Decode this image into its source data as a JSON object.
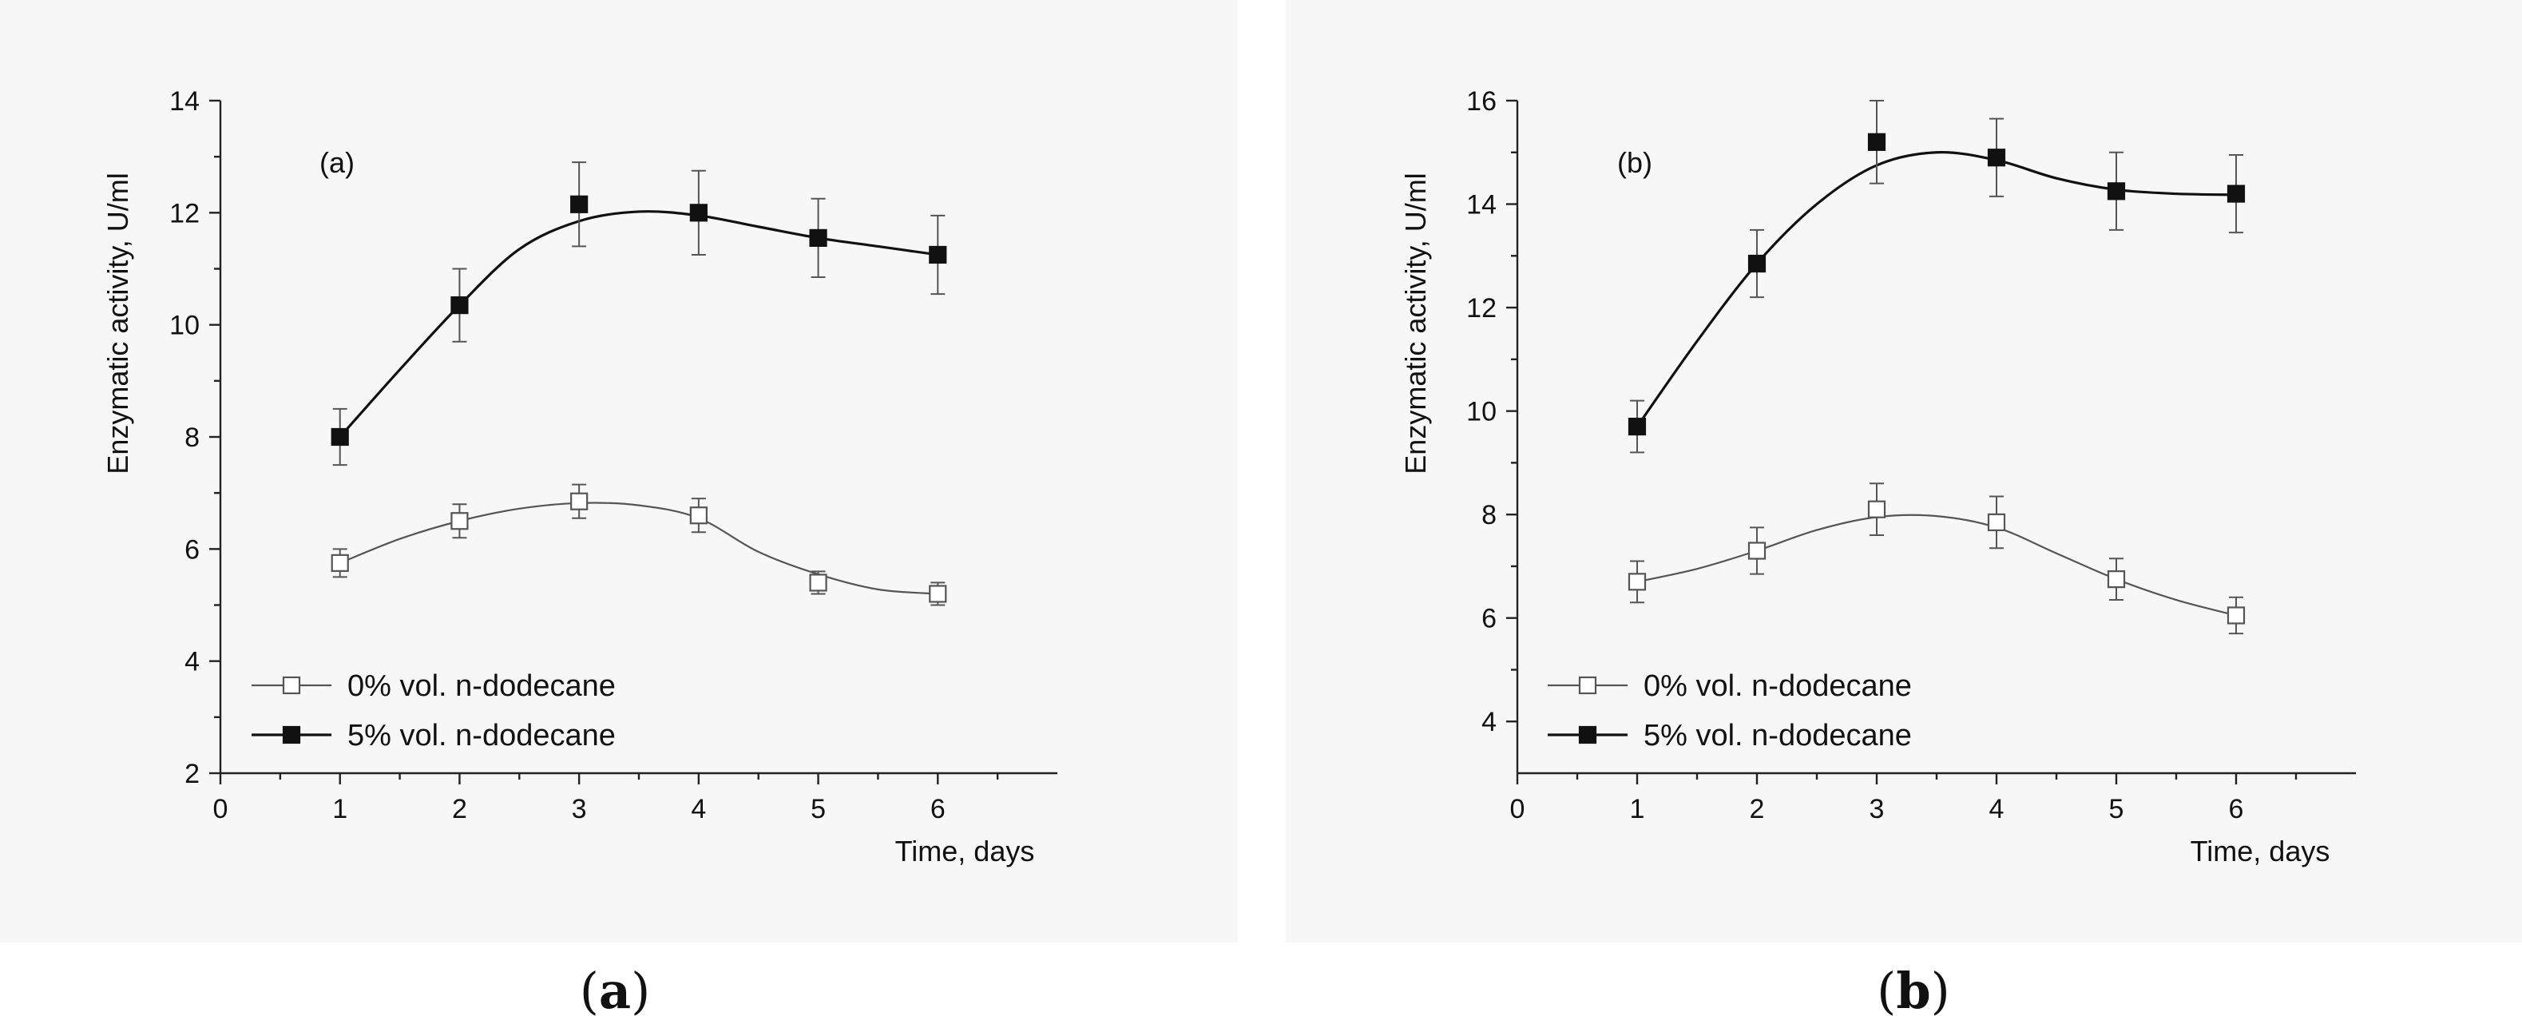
{
  "colors": {
    "series_open_line": "#555555",
    "series_filled_line": "#111111",
    "axis": "#222222",
    "panel_background": "#f7f7f7"
  },
  "chart_data": [
    {
      "type": "line",
      "panel_label": "(a)",
      "caption": {
        "open": "(",
        "letter": "a",
        "close": ")"
      },
      "xlabel": "Time, days",
      "ylabel": "Enzymatic activity, U/ml",
      "xlim": [
        0,
        7
      ],
      "ylim": [
        2,
        14
      ],
      "xticks": [
        "0",
        "1",
        "2",
        "3",
        "4",
        "5",
        "6"
      ],
      "yticks": [
        "2",
        "4",
        "6",
        "8",
        "10",
        "12",
        "14"
      ],
      "x": [
        1,
        2,
        3,
        4,
        5,
        6
      ],
      "legend_position": "bottom-left",
      "series": [
        {
          "name": "0% vol. n-dodecane",
          "marker": "open-square",
          "values": [
            5.75,
            6.5,
            6.85,
            6.6,
            5.4,
            5.2
          ],
          "errors": [
            0.25,
            0.3,
            0.3,
            0.3,
            0.2,
            0.2
          ],
          "curve": [
            [
              1,
              5.75
            ],
            [
              1.5,
              6.18
            ],
            [
              2,
              6.5
            ],
            [
              2.5,
              6.72
            ],
            [
              3,
              6.82
            ],
            [
              3.5,
              6.78
            ],
            [
              4,
              6.55
            ],
            [
              4.5,
              5.95
            ],
            [
              5,
              5.55
            ],
            [
              5.5,
              5.28
            ],
            [
              6,
              5.2
            ]
          ]
        },
        {
          "name": "5% vol. n-dodecane",
          "marker": "filled-square",
          "values": [
            8.0,
            10.35,
            12.15,
            12.0,
            11.55,
            11.25
          ],
          "errors": [
            0.5,
            0.65,
            0.75,
            0.75,
            0.7,
            0.7
          ],
          "curve": [
            [
              1,
              8.0
            ],
            [
              1.5,
              9.2
            ],
            [
              2,
              10.35
            ],
            [
              2.5,
              11.35
            ],
            [
              3,
              11.85
            ],
            [
              3.5,
              12.02
            ],
            [
              4,
              11.95
            ],
            [
              4.5,
              11.75
            ],
            [
              5,
              11.55
            ],
            [
              5.5,
              11.4
            ],
            [
              6,
              11.25
            ]
          ]
        }
      ]
    },
    {
      "type": "line",
      "panel_label": "(b)",
      "caption": {
        "open": "(",
        "letter": "b",
        "close": ")"
      },
      "xlabel": "Time, days",
      "ylabel": "Enzymatic activity, U/ml",
      "xlim": [
        0,
        7
      ],
      "ylim": [
        3,
        16
      ],
      "xticks": [
        "0",
        "1",
        "2",
        "3",
        "4",
        "5",
        "6"
      ],
      "yticks": [
        "4",
        "6",
        "8",
        "10",
        "12",
        "14",
        "16"
      ],
      "x": [
        1,
        2,
        3,
        4,
        5,
        6
      ],
      "legend_position": "bottom-left",
      "series": [
        {
          "name": "0% vol. n-dodecane",
          "marker": "open-square",
          "values": [
            6.7,
            7.3,
            8.1,
            7.85,
            6.75,
            6.05
          ],
          "errors": [
            0.4,
            0.45,
            0.5,
            0.5,
            0.4,
            0.35
          ],
          "curve": [
            [
              1,
              6.7
            ],
            [
              1.5,
              6.95
            ],
            [
              2,
              7.3
            ],
            [
              2.5,
              7.7
            ],
            [
              3,
              7.95
            ],
            [
              3.5,
              7.97
            ],
            [
              4,
              7.75
            ],
            [
              4.5,
              7.25
            ],
            [
              5,
              6.75
            ],
            [
              5.5,
              6.35
            ],
            [
              6,
              6.05
            ]
          ]
        },
        {
          "name": "5% vol. n-dodecane",
          "marker": "filled-square",
          "values": [
            9.7,
            12.85,
            15.2,
            14.9,
            14.25,
            14.2
          ],
          "errors": [
            0.5,
            0.65,
            0.8,
            0.75,
            0.75,
            0.75
          ],
          "curve": [
            [
              1,
              9.7
            ],
            [
              1.5,
              11.35
            ],
            [
              2,
              12.85
            ],
            [
              2.5,
              14.0
            ],
            [
              3,
              14.75
            ],
            [
              3.5,
              15.0
            ],
            [
              4,
              14.85
            ],
            [
              4.5,
              14.5
            ],
            [
              5,
              14.28
            ],
            [
              5.5,
              14.2
            ],
            [
              6,
              14.18
            ]
          ]
        }
      ]
    }
  ]
}
